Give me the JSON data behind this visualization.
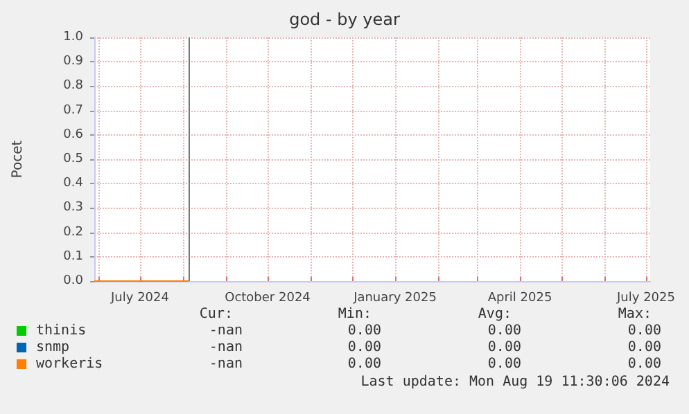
{
  "chart_data": {
    "type": "line",
    "title": "god - by year",
    "ylabel": "Pocet",
    "xlim": [
      "2024-05-29",
      "2025-07-04"
    ],
    "xticks": [
      {
        "value": "2024-06-01",
        "label": null
      },
      {
        "value": "2024-07-01",
        "label": "July 2024"
      },
      {
        "value": "2024-08-01",
        "label": null
      },
      {
        "value": "2024-09-01",
        "label": null
      },
      {
        "value": "2024-10-01",
        "label": "October 2024"
      },
      {
        "value": "2024-11-01",
        "label": null
      },
      {
        "value": "2024-12-01",
        "label": null
      },
      {
        "value": "2025-01-01",
        "label": "January 2025"
      },
      {
        "value": "2025-02-01",
        "label": null
      },
      {
        "value": "2025-03-01",
        "label": null
      },
      {
        "value": "2025-04-01",
        "label": "April 2025"
      },
      {
        "value": "2025-05-01",
        "label": null
      },
      {
        "value": "2025-06-01",
        "label": null
      },
      {
        "value": "2025-07-01",
        "label": "July 2025"
      }
    ],
    "ylim": [
      0,
      1
    ],
    "yticks": [
      {
        "value": 0,
        "label": "0.0"
      },
      {
        "value": 0.1,
        "label": "0.1"
      },
      {
        "value": 0.2,
        "label": "0.2"
      },
      {
        "value": 0.3,
        "label": "0.3"
      },
      {
        "value": 0.4,
        "label": "0.4"
      },
      {
        "value": 0.5,
        "label": "0.5"
      },
      {
        "value": 0.6,
        "label": "0.6"
      },
      {
        "value": 0.7,
        "label": "0.7"
      },
      {
        "value": 0.8,
        "label": "0.8"
      },
      {
        "value": 0.9,
        "label": "0.9"
      },
      {
        "value": 1,
        "label": "1.0"
      }
    ],
    "grid": true,
    "legend": "bottom left",
    "marker": "none",
    "line_style": "solid",
    "series": [
      {
        "name": "thinis",
        "color": "#00cc00"
      },
      {
        "name": "snmp",
        "color": "#0066b3"
      },
      {
        "name": "workeris",
        "color": "#ff8000",
        "x": [
          "2024-05-29",
          "2024-08-05"
        ],
        "values": [
          0,
          0
        ]
      }
    ],
    "ref_lines": [
      {
        "axis": "x",
        "value": "2024-08-05",
        "label": null,
        "color": "#777777"
      }
    ],
    "annotations": [
      "Cur:",
      "Min:",
      "Avg:",
      "Max:",
      "-nan",
      "0.00",
      "0.00",
      "0.00",
      "-nan",
      "0.00",
      "0.00",
      "0.00",
      "-nan",
      "0.00",
      "0.00",
      "0.00",
      "Last update: Mon Aug 19 11:30:06 2024"
    ]
  }
}
